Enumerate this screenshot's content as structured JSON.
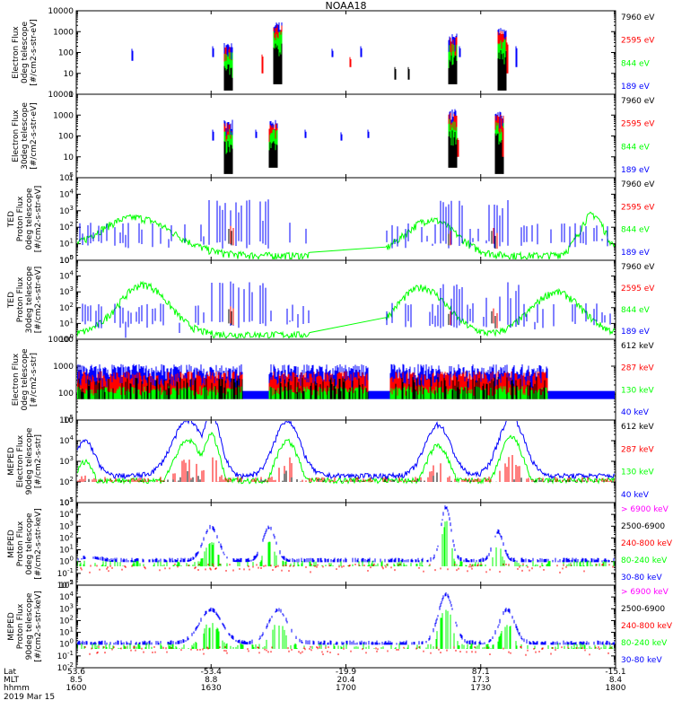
{
  "title": "NOAA18",
  "date_label": "2019 Mar 15",
  "colors": {
    "black": "#000000",
    "red": "#ff0000",
    "green": "#00ff00",
    "blue": "#0000ff",
    "magenta": "#ff00ff",
    "axis": "#000000"
  },
  "chart_data": [
    {
      "type": "line",
      "ylabel": [
        "Electron Flux",
        "0deg telescope",
        "[#/cm2-s-str-eV]"
      ],
      "log": true,
      "ylim": [
        1,
        10000
      ],
      "yticks": [
        "1",
        "10",
        "100",
        "1000",
        "10000"
      ],
      "series": [
        {
          "name": "7960 eV",
          "color": "#000000"
        },
        {
          "name": "2595 eV",
          "color": "#ff0000"
        },
        {
          "name": "844 eV",
          "color": "#00ff00"
        },
        {
          "name": "189 eV",
          "color": "#0000ff"
        }
      ]
    },
    {
      "type": "line",
      "ylabel": [
        "Electron Flux",
        "30deg telescope",
        "[#/cm2-s-str-eV]"
      ],
      "log": true,
      "ylim": [
        1,
        10000
      ],
      "yticks": [
        "1",
        "10",
        "100",
        "1000",
        "10000"
      ],
      "series": [
        {
          "name": "7960 eV",
          "color": "#000000"
        },
        {
          "name": "2595 eV",
          "color": "#ff0000"
        },
        {
          "name": "844 eV",
          "color": "#00ff00"
        },
        {
          "name": "189 eV",
          "color": "#0000ff"
        }
      ]
    },
    {
      "type": "line",
      "ylabel": [
        "TED",
        "Proton Flux",
        "0deg telescope",
        "[#/cm2-s-str-eV]"
      ],
      "log": true,
      "ylim": [
        1,
        100000
      ],
      "yticks": [
        "10^0",
        "10^1",
        "10^2",
        "10^3",
        "10^4",
        "10^5"
      ],
      "series": [
        {
          "name": "7960 eV",
          "color": "#000000"
        },
        {
          "name": "2595 eV",
          "color": "#ff0000"
        },
        {
          "name": "844 eV",
          "color": "#00ff00"
        },
        {
          "name": "189 eV",
          "color": "#0000ff"
        }
      ]
    },
    {
      "type": "line",
      "ylabel": [
        "TED",
        "Proton Flux",
        "30deg telescope",
        "[#/cm2-s-str-eV]"
      ],
      "log": true,
      "ylim": [
        1,
        100000
      ],
      "yticks": [
        "10^0",
        "10^1",
        "10^2",
        "10^3",
        "10^4",
        "10^5"
      ],
      "series": [
        {
          "name": "7960 eV",
          "color": "#000000"
        },
        {
          "name": "2595 eV",
          "color": "#ff0000"
        },
        {
          "name": "844 eV",
          "color": "#00ff00"
        },
        {
          "name": "189 eV",
          "color": "#0000ff"
        }
      ]
    },
    {
      "type": "line",
      "ylabel": [
        "Electron Flux",
        "0deg telescope",
        "[#/cm2-s-str]"
      ],
      "log": true,
      "ylim": [
        10,
        10000
      ],
      "yticks": [
        "10",
        "100",
        "1000",
        "10000"
      ],
      "series": [
        {
          "name": "612 keV",
          "color": "#000000"
        },
        {
          "name": "287 keV",
          "color": "#ff0000"
        },
        {
          "name": "130 keV",
          "color": "#00ff00"
        },
        {
          "name": "40 keV",
          "color": "#0000ff"
        }
      ]
    },
    {
      "type": "line",
      "ylabel": [
        "MEPED",
        "Electron Flux",
        "90deg telescope",
        "[#/cm2-s-str]"
      ],
      "log": true,
      "ylim": [
        10,
        100000
      ],
      "yticks": [
        "10^1",
        "10^2",
        "10^3",
        "10^4",
        "10^5"
      ],
      "series": [
        {
          "name": "612 keV",
          "color": "#000000"
        },
        {
          "name": "287 keV",
          "color": "#ff0000"
        },
        {
          "name": "130 keV",
          "color": "#00ff00"
        },
        {
          "name": "40 keV",
          "color": "#0000ff"
        }
      ]
    },
    {
      "type": "line",
      "ylabel": [
        "MEPED",
        "Proton Flux",
        "0deg telescope",
        "[#/cm2-s-str-keV]"
      ],
      "log": true,
      "ylim": [
        0.01,
        100000
      ],
      "yticks": [
        "10^-2",
        "10^-1",
        "10^0",
        "10^1",
        "10^2",
        "10^3",
        "10^4",
        "10^5"
      ],
      "series": [
        {
          "name": "> 6900 keV",
          "color": "#ff00ff"
        },
        {
          "name": "2500-6900",
          "color": "#000000"
        },
        {
          "name": "240-800 keV",
          "color": "#ff0000"
        },
        {
          "name": "80-240 keV",
          "color": "#00ff00"
        },
        {
          "name": "30-80 keV",
          "color": "#0000ff"
        }
      ]
    },
    {
      "type": "line",
      "ylabel": [
        "MEPED",
        "Proton Flux",
        "90deg telescope",
        "[#/cm2-s-str-keV]"
      ],
      "log": true,
      "ylim": [
        0.01,
        100000
      ],
      "yticks": [
        "10^-2",
        "10^-1",
        "10^0",
        "10^1",
        "10^2",
        "10^3",
        "10^4",
        "10^5"
      ],
      "series": [
        {
          "name": "> 6900 keV",
          "color": "#ff00ff"
        },
        {
          "name": "2500-6900",
          "color": "#000000"
        },
        {
          "name": "240-800 keV",
          "color": "#ff0000"
        },
        {
          "name": "80-240 keV",
          "color": "#00ff00"
        },
        {
          "name": "30-80 keV",
          "color": "#0000ff"
        }
      ]
    }
  ],
  "x_axis": {
    "row_labels": [
      "Lat",
      "MLT",
      "hhmm"
    ],
    "ticks": [
      {
        "lat": "53.6",
        "mlt": "8.5",
        "hhmm": "1600"
      },
      {
        "lat": "-53.4",
        "mlt": "8.8",
        "hhmm": "1630"
      },
      {
        "lat": "-19.9",
        "mlt": "20.4",
        "hhmm": "1700"
      },
      {
        "lat": "87.1",
        "mlt": "17.3",
        "hhmm": "1730"
      },
      {
        "lat": "-15.1",
        "mlt": "8.4",
        "hhmm": "1800"
      }
    ]
  }
}
